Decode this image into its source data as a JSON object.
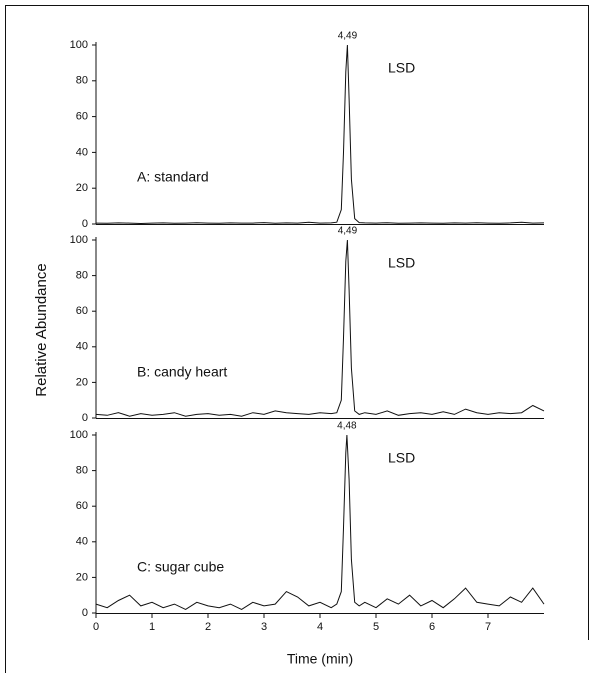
{
  "chart_data": [
    {
      "type": "line",
      "peak_label": "4,49",
      "compound": "LSD",
      "sample": "A: standard",
      "x": [
        0,
        0.2,
        0.4,
        0.6,
        0.8,
        1,
        1.2,
        1.4,
        1.6,
        1.8,
        2,
        2.2,
        2.4,
        2.6,
        2.8,
        3,
        3.2,
        3.4,
        3.6,
        3.8,
        4,
        4.2,
        4.3,
        4.38,
        4.42,
        4.46,
        4.49,
        4.52,
        4.56,
        4.62,
        4.7,
        4.8,
        5,
        5.2,
        5.4,
        5.6,
        5.8,
        6,
        6.2,
        6.4,
        6.6,
        6.8,
        7,
        7.2,
        7.4,
        7.6,
        7.8,
        8
      ],
      "series": [
        {
          "color": "#111111",
          "values": [
            0.5,
            0.4,
            0.6,
            0.5,
            0.3,
            0.5,
            0.6,
            0.4,
            0.5,
            0.7,
            0.5,
            0.4,
            0.6,
            0.5,
            0.5,
            0.8,
            0.4,
            0.6,
            0.5,
            1,
            0.5,
            0.6,
            1,
            8,
            40,
            85,
            100,
            70,
            25,
            3,
            0.8,
            0.6,
            0.5,
            0.7,
            0.4,
            0.5,
            0.6,
            0.5,
            0.4,
            0.6,
            0.5,
            0.7,
            0.5,
            0.4,
            0.6,
            1,
            0.5,
            0.6
          ]
        }
      ],
      "xlim": [
        0,
        8
      ],
      "ylim": [
        0,
        100
      ],
      "yticks": [
        0,
        20,
        40,
        60,
        80,
        100
      ]
    },
    {
      "type": "line",
      "peak_label": "4,49",
      "compound": "LSD",
      "sample": "B: candy heart",
      "ylabel": "Relative Abundance",
      "x": [
        0,
        0.2,
        0.4,
        0.6,
        0.8,
        1,
        1.2,
        1.4,
        1.6,
        1.8,
        2,
        2.2,
        2.4,
        2.6,
        2.8,
        3,
        3.2,
        3.4,
        3.6,
        3.8,
        4,
        4.2,
        4.3,
        4.38,
        4.42,
        4.46,
        4.49,
        4.52,
        4.56,
        4.62,
        4.7,
        4.8,
        5,
        5.2,
        5.4,
        5.6,
        5.8,
        6,
        6.2,
        6.4,
        6.6,
        6.8,
        7,
        7.2,
        7.4,
        7.6,
        7.8,
        8
      ],
      "series": [
        {
          "color": "#111111",
          "values": [
            2,
            1.5,
            3,
            1,
            2.5,
            1.5,
            2,
            3,
            1,
            2,
            2.5,
            1.5,
            2,
            1,
            3,
            2,
            4,
            3,
            2.5,
            2,
            3,
            2.5,
            3,
            10,
            45,
            88,
            100,
            72,
            28,
            4,
            2,
            3,
            2,
            4,
            1.5,
            2.5,
            3,
            2,
            3.5,
            2,
            5,
            3,
            2,
            3,
            2.5,
            3,
            7,
            4
          ]
        }
      ],
      "xlim": [
        0,
        8
      ],
      "ylim": [
        0,
        100
      ],
      "yticks": [
        0,
        20,
        40,
        60,
        80,
        100
      ]
    },
    {
      "type": "line",
      "peak_label": "4,48",
      "compound": "LSD",
      "sample": "C: sugar cube",
      "xlabel": "Time (min)",
      "x": [
        0,
        0.2,
        0.4,
        0.6,
        0.8,
        1,
        1.2,
        1.4,
        1.6,
        1.8,
        2,
        2.2,
        2.4,
        2.6,
        2.8,
        3,
        3.2,
        3.4,
        3.6,
        3.8,
        4,
        4.2,
        4.3,
        4.38,
        4.42,
        4.46,
        4.48,
        4.52,
        4.56,
        4.62,
        4.7,
        4.8,
        5,
        5.2,
        5.4,
        5.6,
        5.8,
        6,
        6.2,
        6.4,
        6.6,
        6.8,
        7,
        7.2,
        7.4,
        7.6,
        7.8,
        8
      ],
      "series": [
        {
          "color": "#111111",
          "values": [
            5,
            3,
            7,
            10,
            4,
            6,
            3,
            5,
            2,
            6,
            4,
            3,
            5,
            2,
            6,
            4,
            5,
            12,
            9,
            4,
            6,
            3,
            5,
            12,
            48,
            90,
            100,
            75,
            30,
            6,
            4,
            6,
            3,
            8,
            5,
            10,
            4,
            7,
            3,
            8,
            14,
            6,
            5,
            4,
            9,
            6,
            14,
            5
          ]
        }
      ],
      "xlim": [
        0,
        8
      ],
      "ylim": [
        0,
        100
      ],
      "yticks": [
        0,
        20,
        40,
        60,
        80,
        100
      ],
      "xticks": [
        0,
        1,
        2,
        3,
        4,
        5,
        6,
        7
      ]
    }
  ]
}
